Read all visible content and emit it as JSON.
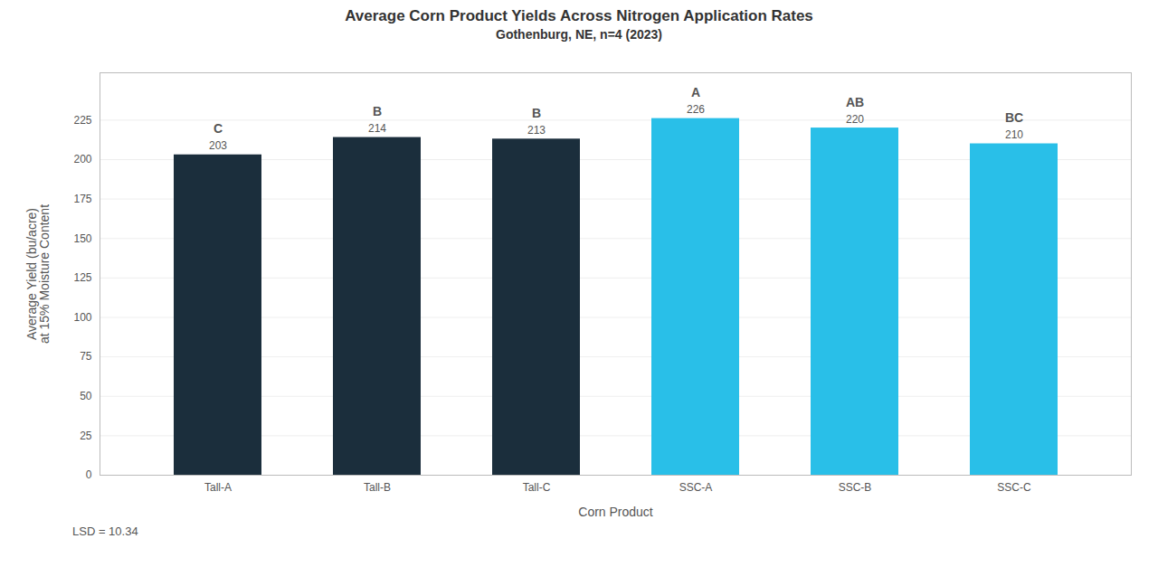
{
  "chart_data": {
    "type": "bar",
    "title": "Average Corn Product Yields Across Nitrogen Application Rates",
    "subtitle": "Gothenburg, NE, n=4 (2023)",
    "categories": [
      "Tall-A",
      "Tall-B",
      "Tall-C",
      "SSC-A",
      "SSC-B",
      "SSC-C"
    ],
    "values": [
      203,
      214,
      213,
      226,
      220,
      210
    ],
    "colors": [
      "#1b2e3c",
      "#1b2e3c",
      "#1b2e3c",
      "#29bfe8",
      "#29bfe8",
      "#29bfe8"
    ],
    "significance_labels": [
      "C",
      "B",
      "B",
      "A",
      "AB",
      "BC"
    ],
    "xlabel": "Corn Product",
    "ylabel": "Average Yield (bu/acre)\nat 15% Moisture Content",
    "ylim": [
      0,
      255
    ],
    "yticks": [
      0,
      25,
      50,
      75,
      100,
      125,
      150,
      175,
      200,
      225
    ],
    "annotation": "LSD = 10.34",
    "grid": true,
    "data_labels": true
  }
}
